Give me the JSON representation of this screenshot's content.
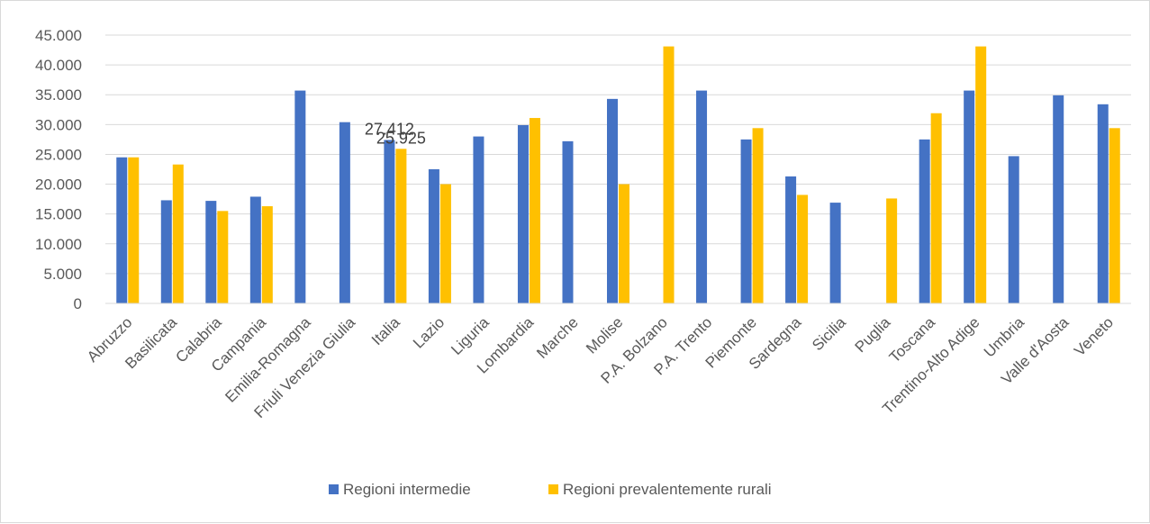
{
  "chart_data": {
    "type": "bar",
    "title": "",
    "xlabel": "",
    "ylabel": "",
    "ylim": [
      0,
      45000
    ],
    "yticks": [
      0,
      5000,
      10000,
      15000,
      20000,
      25000,
      30000,
      35000,
      40000,
      45000
    ],
    "ytick_labels": [
      "0",
      "5.000",
      "10.000",
      "15.000",
      "20.000",
      "25.000",
      "30.000",
      "35.000",
      "40.000",
      "45.000"
    ],
    "grid": true,
    "legend_position": "bottom",
    "categories": [
      "Abruzzo",
      "Basilicata",
      "Calabria",
      "Campania",
      "Emilia-Romagna",
      "Friuli Venezia Giulia",
      "Italia",
      "Lazio",
      "Liguria",
      "Lombardia",
      "Marche",
      "Molise",
      "P.A. Bolzano",
      "P.A. Trento",
      "Piemonte",
      "Sardegna",
      "Sicilia",
      "Puglia",
      "Toscana",
      "Trentino-Alto Adige",
      "Umbria",
      "Valle d'Aosta",
      "Veneto"
    ],
    "series": [
      {
        "name": "Regioni intermedie",
        "color": "#4472c4",
        "values": [
          24500,
          17300,
          17200,
          17900,
          35700,
          30400,
          27412,
          22500,
          28000,
          29900,
          27200,
          34300,
          null,
          35700,
          27500,
          21300,
          16900,
          null,
          27500,
          35700,
          24700,
          34900,
          33400
        ]
      },
      {
        "name": "Regioni prevalentemente rurali",
        "color": "#ffc000",
        "values": [
          24500,
          23300,
          15500,
          16300,
          null,
          null,
          25925,
          20000,
          null,
          31100,
          null,
          20000,
          43100,
          null,
          29400,
          18200,
          null,
          17600,
          31900,
          43100,
          null,
          null,
          29400
        ]
      }
    ],
    "data_labels": [
      {
        "category": "Italia",
        "series": 0,
        "text": "27.412"
      },
      {
        "category": "Italia",
        "series": 1,
        "text": "25.925"
      }
    ]
  }
}
